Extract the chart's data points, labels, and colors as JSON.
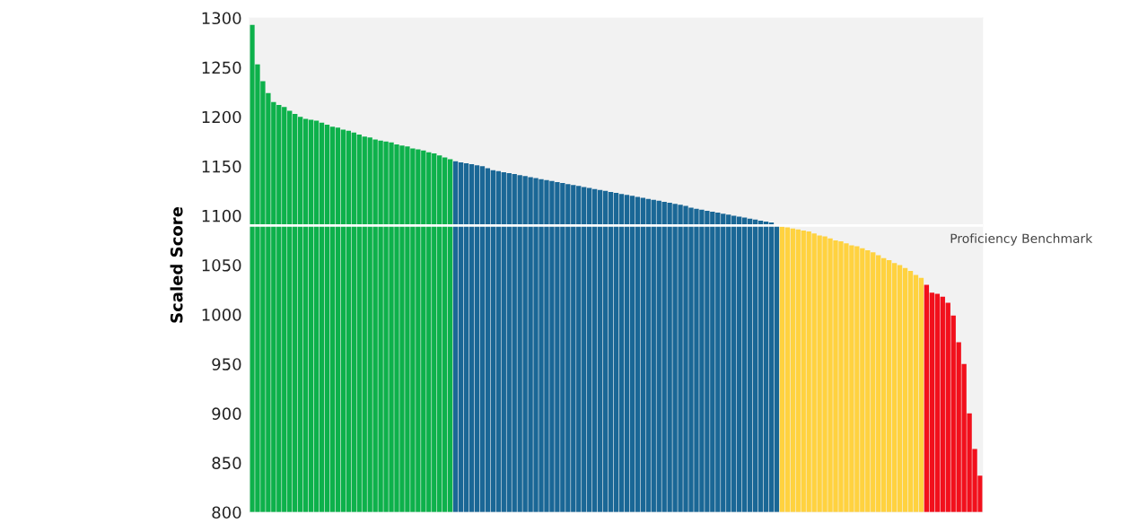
{
  "chart_data": {
    "type": "bar",
    "ylabel": "Scaled Score",
    "categories": [
      null,
      null,
      null,
      null,
      null,
      null,
      null,
      null,
      null,
      null,
      null,
      null,
      null,
      null,
      null,
      null,
      null,
      null,
      null,
      null,
      null,
      null,
      null,
      null,
      null,
      null,
      null,
      null,
      null,
      null,
      null,
      null,
      null,
      null,
      null,
      null,
      null,
      null,
      null,
      null,
      null,
      null,
      null,
      null,
      null,
      null,
      null,
      null,
      null,
      null,
      null,
      null,
      null,
      null,
      null,
      null,
      null,
      null,
      null,
      null,
      null,
      null,
      null,
      null,
      null,
      null,
      null,
      null,
      null,
      null,
      null,
      null,
      null,
      null,
      null,
      null,
      null,
      null,
      null,
      null,
      null,
      null,
      null,
      null,
      null,
      null,
      null,
      null,
      null,
      null,
      null,
      null,
      null,
      null,
      null,
      null,
      null,
      null,
      null,
      null,
      null,
      null,
      null,
      null,
      null,
      null,
      null,
      null,
      null,
      null,
      null,
      null,
      null,
      null,
      null,
      null,
      null,
      null,
      null,
      null,
      null,
      null,
      null,
      null,
      null,
      null,
      null,
      null,
      null,
      null,
      null,
      null,
      null,
      null,
      null,
      null,
      null
    ],
    "values": [
      1293,
      1253,
      1236,
      1224,
      1215,
      1212,
      1210,
      1206,
      1203,
      1200,
      1198,
      1197,
      1196,
      1194,
      1192,
      1190,
      1189,
      1187,
      1186,
      1184,
      1182,
      1180,
      1179,
      1177,
      1176,
      1175,
      1174,
      1172,
      1171,
      1170,
      1168,
      1167,
      1166,
      1164,
      1163,
      1161,
      1159,
      1157,
      1155,
      1154,
      1153,
      1152,
      1151,
      1150,
      1148,
      1146,
      1145,
      1144,
      1143,
      1142,
      1141,
      1140,
      1139,
      1138,
      1137,
      1136,
      1135,
      1134,
      1133,
      1132,
      1131,
      1130,
      1129,
      1128,
      1127,
      1126,
      1125,
      1124,
      1123,
      1122,
      1121,
      1120,
      1119,
      1118,
      1117,
      1116,
      1115,
      1114,
      1113,
      1112,
      1111,
      1110,
      1108,
      1107,
      1106,
      1105,
      1104,
      1103,
      1102,
      1101,
      1100,
      1099,
      1098,
      1097,
      1096,
      1095,
      1094,
      1093,
      1091,
      1089,
      1088,
      1087,
      1086,
      1085,
      1084,
      1082,
      1080,
      1079,
      1077,
      1075,
      1074,
      1072,
      1070,
      1069,
      1067,
      1065,
      1063,
      1060,
      1057,
      1055,
      1052,
      1050,
      1047,
      1044,
      1040,
      1037,
      1030,
      1022,
      1021,
      1018,
      1012,
      999,
      972,
      950,
      900,
      864,
      837
    ],
    "colors": [
      "#0db14b",
      "#0db14b",
      "#0db14b",
      "#0db14b",
      "#0db14b",
      "#0db14b",
      "#0db14b",
      "#0db14b",
      "#0db14b",
      "#0db14b",
      "#0db14b",
      "#0db14b",
      "#0db14b",
      "#0db14b",
      "#0db14b",
      "#0db14b",
      "#0db14b",
      "#0db14b",
      "#0db14b",
      "#0db14b",
      "#0db14b",
      "#0db14b",
      "#0db14b",
      "#0db14b",
      "#0db14b",
      "#0db14b",
      "#0db14b",
      "#0db14b",
      "#0db14b",
      "#0db14b",
      "#0db14b",
      "#0db14b",
      "#0db14b",
      "#0db14b",
      "#0db14b",
      "#0db14b",
      "#0db14b",
      "#0db14b",
      "#1a6796",
      "#1a6796",
      "#1a6796",
      "#1a6796",
      "#1a6796",
      "#1a6796",
      "#1a6796",
      "#1a6796",
      "#1a6796",
      "#1a6796",
      "#1a6796",
      "#1a6796",
      "#1a6796",
      "#1a6796",
      "#1a6796",
      "#1a6796",
      "#1a6796",
      "#1a6796",
      "#1a6796",
      "#1a6796",
      "#1a6796",
      "#1a6796",
      "#1a6796",
      "#1a6796",
      "#1a6796",
      "#1a6796",
      "#1a6796",
      "#1a6796",
      "#1a6796",
      "#1a6796",
      "#1a6796",
      "#1a6796",
      "#1a6796",
      "#1a6796",
      "#1a6796",
      "#1a6796",
      "#1a6796",
      "#1a6796",
      "#1a6796",
      "#1a6796",
      "#1a6796",
      "#1a6796",
      "#1a6796",
      "#1a6796",
      "#1a6796",
      "#1a6796",
      "#1a6796",
      "#1a6796",
      "#1a6796",
      "#1a6796",
      "#1a6796",
      "#1a6796",
      "#1a6796",
      "#1a6796",
      "#1a6796",
      "#1a6796",
      "#1a6796",
      "#1a6796",
      "#1a6796",
      "#1a6796",
      "#1a6796",
      "#ffd23f",
      "#ffd23f",
      "#ffd23f",
      "#ffd23f",
      "#ffd23f",
      "#ffd23f",
      "#ffd23f",
      "#ffd23f",
      "#ffd23f",
      "#ffd23f",
      "#ffd23f",
      "#ffd23f",
      "#ffd23f",
      "#ffd23f",
      "#ffd23f",
      "#ffd23f",
      "#ffd23f",
      "#ffd23f",
      "#ffd23f",
      "#ffd23f",
      "#ffd23f",
      "#ffd23f",
      "#ffd23f",
      "#ffd23f",
      "#ffd23f",
      "#ffd23f",
      "#ffd23f",
      "#f2101c",
      "#f2101c",
      "#f2101c",
      "#f2101c",
      "#f2101c",
      "#f2101c",
      "#f2101c",
      "#f2101c",
      "#f2101c",
      "#f2101c",
      "#f2101c"
    ],
    "ylim": [
      800,
      1300
    ],
    "yticks": [
      800,
      850,
      900,
      950,
      1000,
      1050,
      1100,
      1150,
      1200,
      1250,
      1300
    ],
    "ref_lines": [
      {
        "axis": "y",
        "value": 1090,
        "label": "Proficiency Benchmark",
        "color": "#ffffff"
      }
    ],
    "tick_labels": "y",
    "grid": false,
    "legend": false
  }
}
